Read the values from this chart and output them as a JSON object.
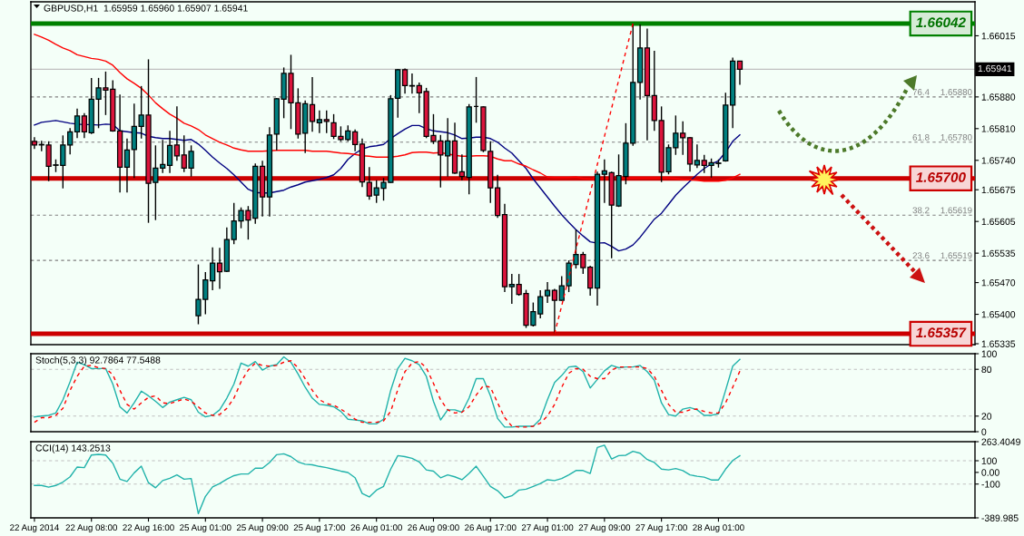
{
  "chart_data": [
    {
      "type": "candlestick",
      "title": "GBPUSD,H1  1.65959 1.65960 1.65907 1.65941",
      "categories": [
        null,
        null,
        null,
        null,
        null,
        null,
        null,
        null,
        null,
        null,
        null,
        null,
        null,
        null,
        null,
        null,
        null,
        null,
        null,
        null,
        null,
        null,
        null,
        null,
        null,
        null,
        null,
        null,
        null,
        null,
        null,
        null,
        null,
        null,
        null,
        null,
        null,
        null,
        null,
        null,
        null,
        null,
        null,
        null,
        null,
        null,
        null,
        null,
        null,
        null,
        null,
        null,
        null,
        null,
        null,
        null,
        null,
        null,
        null,
        null,
        null,
        null,
        null,
        null,
        null,
        null,
        null,
        null,
        null,
        null,
        null,
        null,
        null,
        null,
        null,
        null,
        null,
        null,
        null,
        null,
        null,
        null,
        null,
        null,
        null,
        null,
        null,
        null,
        null,
        null,
        null,
        null,
        null,
        null,
        null,
        null,
        null,
        null,
        null,
        null
      ],
      "ohlc": [
        [
          1.65782,
          1.65791,
          1.65765,
          1.65774
        ],
        [
          1.65774,
          1.65783,
          1.6576,
          1.65775
        ],
        [
          1.65774,
          1.65782,
          1.65694,
          1.65727
        ],
        [
          1.65729,
          1.65742,
          1.65714,
          1.6573
        ],
        [
          1.65729,
          1.65795,
          1.65678,
          1.65774
        ],
        [
          1.65774,
          1.65811,
          1.65753,
          1.65803
        ],
        [
          1.65803,
          1.65854,
          1.65789,
          1.65838
        ],
        [
          1.65838,
          1.65844,
          1.65789,
          1.65803
        ],
        [
          1.65801,
          1.65922,
          1.65798,
          1.65875
        ],
        [
          1.65875,
          1.65922,
          1.65811,
          1.659
        ],
        [
          1.659,
          1.65936,
          1.6584,
          1.65895
        ],
        [
          1.65897,
          1.65917,
          1.65803,
          1.65805
        ],
        [
          1.65805,
          1.65885,
          1.65669,
          1.65725
        ],
        [
          1.65725,
          1.65788,
          1.65669,
          1.65763
        ],
        [
          1.65764,
          1.65865,
          1.65701,
          1.65815
        ],
        [
          1.65815,
          1.65904,
          1.65788,
          1.6584
        ],
        [
          1.6584,
          1.65963,
          1.65602,
          1.65689
        ],
        [
          1.65691,
          1.65773,
          1.65608,
          1.65723
        ],
        [
          1.65723,
          1.65785,
          1.65712,
          1.65731
        ],
        [
          1.65729,
          1.65805,
          1.65712,
          1.65773
        ],
        [
          1.65774,
          1.65859,
          1.65739,
          1.6575
        ],
        [
          1.65752,
          1.65795,
          1.65714,
          1.65723
        ],
        [
          1.65723,
          1.65773,
          1.65704,
          1.6576
        ],
        [
          1.65397,
          1.6551,
          1.65378,
          1.65433
        ],
        [
          1.65433,
          1.65493,
          1.654,
          1.65476
        ],
        [
          1.65474,
          1.65548,
          1.65453,
          1.65513
        ],
        [
          1.65513,
          1.65547,
          1.65456,
          1.65494
        ],
        [
          1.65495,
          1.65592,
          1.65493,
          1.65565
        ],
        [
          1.65565,
          1.65646,
          1.65555,
          1.65606
        ],
        [
          1.65606,
          1.65636,
          1.6559,
          1.65629
        ],
        [
          1.65629,
          1.65639,
          1.65565,
          1.65608
        ],
        [
          1.65612,
          1.65733,
          1.656,
          1.65727
        ],
        [
          1.65727,
          1.65739,
          1.65616,
          1.65659
        ],
        [
          1.65659,
          1.65813,
          1.65616,
          1.65796
        ],
        [
          1.65798,
          1.65877,
          1.65762,
          1.65876
        ],
        [
          1.65875,
          1.65945,
          1.65833,
          1.65932
        ],
        [
          1.65932,
          1.65973,
          1.65809,
          1.65867
        ],
        [
          1.65867,
          1.65899,
          1.65788,
          1.65798
        ],
        [
          1.658,
          1.65872,
          1.65756,
          1.65865
        ],
        [
          1.65863,
          1.65924,
          1.65803,
          1.65826
        ],
        [
          1.65823,
          1.6585,
          1.658,
          1.6583
        ],
        [
          1.6583,
          1.6585,
          1.658,
          1.65826
        ],
        [
          1.65823,
          1.65842,
          1.65787,
          1.65793
        ],
        [
          1.65793,
          1.65815,
          1.65782,
          1.65786
        ],
        [
          1.65786,
          1.65817,
          1.65782,
          1.65805
        ],
        [
          1.65803,
          1.65808,
          1.6576,
          1.65775
        ],
        [
          1.65776,
          1.65788,
          1.65681,
          1.65692
        ],
        [
          1.65691,
          1.65725,
          1.65653,
          1.65661
        ],
        [
          1.65663,
          1.65696,
          1.65646,
          1.65679
        ],
        [
          1.65678,
          1.65701,
          1.65651,
          1.65691
        ],
        [
          1.65691,
          1.65884,
          1.6569,
          1.65876
        ],
        [
          1.65877,
          1.65942,
          1.65834,
          1.6594
        ],
        [
          1.6594,
          1.65943,
          1.65887,
          1.65905
        ],
        [
          1.65905,
          1.65932,
          1.65887,
          1.65904
        ],
        [
          1.65905,
          1.65912,
          1.65844,
          1.65889
        ],
        [
          1.65892,
          1.659,
          1.65789,
          1.65793
        ],
        [
          1.65795,
          1.65842,
          1.65776,
          1.65782
        ],
        [
          1.65783,
          1.65796,
          1.6568,
          1.65752
        ],
        [
          1.6575,
          1.65833,
          1.65704,
          1.65783
        ],
        [
          1.65783,
          1.65823,
          1.6571,
          1.65712
        ],
        [
          1.65715,
          1.65753,
          1.65696,
          1.65704
        ],
        [
          1.65702,
          1.65864,
          1.65665,
          1.65858
        ],
        [
          1.65859,
          1.65924,
          1.65823,
          1.65859
        ],
        [
          1.65858,
          1.65859,
          1.65758,
          1.65762
        ],
        [
          1.6576,
          1.65782,
          1.65646,
          1.65679
        ],
        [
          1.65679,
          1.65708,
          1.65613,
          1.65618
        ],
        [
          1.6562,
          1.65644,
          1.65449,
          1.65461
        ],
        [
          1.65461,
          1.65489,
          1.65423,
          1.65466
        ],
        [
          1.65466,
          1.65489,
          1.65441,
          1.65444
        ],
        [
          1.65446,
          1.65454,
          1.6537,
          1.65376
        ],
        [
          1.65376,
          1.65426,
          1.65373,
          1.65406
        ],
        [
          1.65401,
          1.65453,
          1.65391,
          1.65439
        ],
        [
          1.65441,
          1.65471,
          1.65425,
          1.65453
        ],
        [
          1.65453,
          1.65456,
          1.65357,
          1.65431
        ],
        [
          1.65431,
          1.65484,
          1.6543,
          1.65463
        ],
        [
          1.65463,
          1.65519,
          1.65449,
          1.65513
        ],
        [
          1.6551,
          1.65587,
          1.65501,
          1.65532
        ],
        [
          1.65532,
          1.65538,
          1.65489,
          1.65503
        ],
        [
          1.65504,
          1.65507,
          1.65441,
          1.65458
        ],
        [
          1.65458,
          1.65715,
          1.65419,
          1.65709
        ],
        [
          1.65709,
          1.65742,
          1.65646,
          1.65717
        ],
        [
          1.65713,
          1.65715,
          1.65524,
          1.65641
        ],
        [
          1.65639,
          1.65753,
          1.65637,
          1.65706
        ],
        [
          1.65704,
          1.65822,
          1.65687,
          1.65778
        ],
        [
          1.65778,
          1.66042,
          1.65772,
          1.65912
        ],
        [
          1.65912,
          1.6604,
          1.65874,
          1.65988
        ],
        [
          1.65988,
          1.66031,
          1.65784,
          1.65883
        ],
        [
          1.65883,
          1.65982,
          1.65805,
          1.65828
        ],
        [
          1.65828,
          1.65859,
          1.65692,
          1.65714
        ],
        [
          1.65715,
          1.65775,
          1.65709,
          1.65768
        ],
        [
          1.65768,
          1.65839,
          1.65752,
          1.658
        ],
        [
          1.658,
          1.65826,
          1.65752,
          1.6579
        ],
        [
          1.6579,
          1.65791,
          1.65715,
          1.65732
        ],
        [
          1.6573,
          1.65775,
          1.65723,
          1.6574
        ],
        [
          1.6574,
          1.65752,
          1.65712,
          1.65729
        ],
        [
          1.65729,
          1.65744,
          1.65702,
          1.65735
        ],
        [
          1.65733,
          1.65742,
          1.65724,
          1.65734
        ],
        [
          1.65739,
          1.65889,
          1.65737,
          1.65862
        ],
        [
          1.65862,
          1.65967,
          1.65811,
          1.65959
        ],
        [
          1.65959,
          1.6596,
          1.65907,
          1.65941
        ]
      ],
      "colors": [
        "#dc143c",
        "#008080",
        "#dc143c",
        "#008080",
        "#008080",
        "#008080",
        "#008080",
        "#dc143c",
        "#008080",
        "#008080",
        "#dc143c",
        "#dc143c",
        "#dc143c",
        "#008080",
        "#008080",
        "#008080",
        "#dc143c",
        "#008080",
        "#008080",
        "#008080",
        "#dc143c",
        "#dc143c",
        "#008080",
        "#008080",
        "#008080",
        "#008080",
        "#dc143c",
        "#008080",
        "#008080",
        "#008080",
        "#dc143c",
        "#008080",
        "#dc143c",
        "#008080",
        "#008080",
        "#008080",
        "#dc143c",
        "#dc143c",
        "#008080",
        "#dc143c",
        "#008080",
        "#dc143c",
        "#dc143c",
        "#dc143c",
        "#008080",
        "#dc143c",
        "#dc143c",
        "#dc143c",
        "#008080",
        "#008080",
        "#008080",
        "#008080",
        "#dc143c",
        "#dc143c",
        "#dc143c",
        "#dc143c",
        "#dc143c",
        "#dc143c",
        "#008080",
        "#dc143c",
        "#dc143c",
        "#008080",
        "#000000",
        "#dc143c",
        "#dc143c",
        "#dc143c",
        "#dc143c",
        "#008080",
        "#dc143c",
        "#dc143c",
        "#008080",
        "#008080",
        "#008080",
        "#dc143c",
        "#008080",
        "#008080",
        "#008080",
        "#dc143c",
        "#dc143c",
        "#008080",
        "#008080",
        "#dc143c",
        "#008080",
        "#008080",
        "#008080",
        "#008080",
        "#dc143c",
        "#dc143c",
        "#dc143c",
        "#008080",
        "#008080",
        "#dc143c",
        "#dc143c",
        "#008080",
        "#dc143c",
        "#008080",
        "#008080",
        "#008080",
        "#008080",
        "#dc143c"
      ],
      "series": [
        {
          "type": "line",
          "color": "#000080",
          "values": [
            1.65818,
            1.65824,
            1.65826,
            1.65828,
            1.65825,
            1.65822,
            1.6582,
            1.65819,
            1.65819,
            1.65818,
            1.6582,
            1.65819,
            1.65805,
            1.65803,
            1.65801,
            1.658,
            1.65793,
            1.6579,
            1.65788,
            1.65788,
            1.65786,
            1.65784,
            1.65786,
            1.65776,
            1.65762,
            1.65747,
            1.65734,
            1.65722,
            1.65708,
            1.65692,
            1.65676,
            1.65669,
            1.65668,
            1.65668,
            1.65671,
            1.65674,
            1.65681,
            1.65686,
            1.65692,
            1.65695,
            1.65698,
            1.65702,
            1.65708,
            1.65722,
            1.65742,
            1.65755,
            1.65765,
            1.6577,
            1.65772,
            1.65775,
            1.65788,
            1.65799,
            1.65809,
            1.65817,
            1.65817,
            1.6581,
            1.65805,
            1.65803,
            1.65801,
            1.65796,
            1.65788,
            1.65789,
            1.65791,
            1.65791,
            1.65788,
            1.6578,
            1.65767,
            1.65756,
            1.65739,
            1.65722,
            1.65699,
            1.65679,
            1.65659,
            1.65639,
            1.6562,
            1.65603,
            1.65587,
            1.65573,
            1.6556,
            1.65557,
            1.65558,
            1.6555,
            1.6554,
            1.65544,
            1.65553,
            1.6557,
            1.6559,
            1.6561,
            1.65623,
            1.65643,
            1.65663,
            1.65679,
            1.65694,
            1.65709,
            1.65722,
            1.65732,
            1.65739,
            1.65758,
            1.65782,
            1.65796
          ]
        },
        {
          "type": "line",
          "color": "#ff0000",
          "values": [
            1.66018,
            1.66012,
            1.66005,
            1.65996,
            1.65988,
            1.65982,
            1.65973,
            1.65969,
            1.65965,
            1.65963,
            1.65959,
            1.6595,
            1.65934,
            1.6592,
            1.6591,
            1.65899,
            1.65884,
            1.65867,
            1.65854,
            1.65842,
            1.65833,
            1.65822,
            1.65816,
            1.65808,
            1.65796,
            1.65788,
            1.6578,
            1.65774,
            1.65767,
            1.65763,
            1.6576,
            1.6576,
            1.6576,
            1.65761,
            1.65762,
            1.65762,
            1.65762,
            1.65762,
            1.65762,
            1.6576,
            1.6576,
            1.6576,
            1.65758,
            1.65756,
            1.65755,
            1.65753,
            1.6575,
            1.65749,
            1.65747,
            1.65747,
            1.65747,
            1.65749,
            1.65752,
            1.65757,
            1.65758,
            1.65758,
            1.65756,
            1.65757,
            1.65754,
            1.65751,
            1.65749,
            1.65749,
            1.6575,
            1.6575,
            1.65749,
            1.65743,
            1.65739,
            1.65739,
            1.65732,
            1.65727,
            1.65719,
            1.65712,
            1.65703,
            1.65702,
            1.65702,
            1.65702,
            1.65703,
            1.657,
            1.65699,
            1.65699,
            1.657,
            1.65701,
            1.65701,
            1.65701,
            1.65701,
            1.65701,
            1.65701,
            1.65701,
            1.65701,
            1.65701,
            1.657,
            1.65698,
            1.65697,
            1.65696,
            1.65694,
            1.65694,
            1.65694,
            1.65696,
            1.65701,
            1.65709
          ]
        },
        {
          "type": "line",
          "color": "#ff0000",
          "line_style": "dashed",
          "values": [
            null,
            null,
            null,
            null,
            null,
            null,
            null,
            null,
            null,
            null,
            null,
            null,
            null,
            null,
            null,
            null,
            null,
            null,
            null,
            null,
            null,
            null,
            null,
            null,
            null,
            null,
            null,
            null,
            null,
            null,
            null,
            null,
            null,
            null,
            null,
            null,
            null,
            null,
            null,
            null,
            null,
            null,
            null,
            null,
            null,
            null,
            null,
            null,
            null,
            null,
            null,
            null,
            null,
            null,
            null,
            null,
            null,
            null,
            null,
            null,
            null,
            null,
            null,
            null,
            null,
            null,
            null,
            null,
            null,
            null,
            null,
            null,
            null,
            1.65357,
            1.65419,
            1.65482,
            1.65544,
            1.65606,
            1.65668,
            1.65731,
            1.65793,
            1.65855,
            1.65917,
            1.6598,
            1.66042,
            null,
            null,
            null,
            null,
            null,
            null,
            null,
            null,
            null,
            null,
            null,
            null,
            null,
            null,
            null
          ]
        }
      ],
      "ylim": [
        1.65333,
        1.6609
      ],
      "yticks": [
        1.66015,
        {
          "value": 1.6588,
          "label": "1.65880"
        },
        {
          "value": 1.6581,
          "label": "1.65810"
        },
        {
          "value": 1.6574,
          "label": "1.65740"
        },
        1.65675,
        1.65605,
        1.65535,
        {
          "value": 1.6547,
          "label": "1.65470"
        },
        {
          "value": 1.654,
          "label": "1.65400"
        },
        1.65335
      ],
      "ref_lines": [
        {
          "axis": "y",
          "value": 1.65941,
          "label": "1.65941",
          "color": "#c0c0c0"
        },
        {
          "axis": "y",
          "value": 1.6588,
          "label": "1.65880",
          "color": "#808080",
          "line_style": "dashed"
        },
        {
          "axis": "y",
          "value": 1.6578,
          "label": "1.65780",
          "color": "#808080",
          "line_style": "dashed"
        },
        {
          "axis": "y",
          "value": 1.65619,
          "label": "1.65619",
          "color": "#808080",
          "line_style": "dashed"
        },
        {
          "axis": "y",
          "value": 1.65519,
          "label": "1.65519",
          "color": "#808080",
          "line_style": "dashed"
        },
        {
          "axis": "y",
          "value": 1.66042,
          "label": "1.66042",
          "color": "#008000",
          "line_style": "solid"
        },
        {
          "axis": "y",
          "value": 1.657,
          "label": "1.65700",
          "color": "#cc0000",
          "line_style": "solid"
        },
        {
          "axis": "y",
          "value": 1.65357,
          "label": "1.65357",
          "color": "#cc0000",
          "line_style": "solid"
        }
      ],
      "annotations": [
        {
          "text": "76.4",
          "y": 1.6588
        },
        {
          "text": "61.8",
          "y": 1.6578
        },
        {
          "text": "38.2",
          "y": 1.65619
        },
        {
          "text": "23.6",
          "y": 1.65519
        }
      ],
      "tick_labels": "y"
    },
    {
      "type": "line",
      "title": "Stoch(5,3,3) 92.7864 77.5488",
      "categories": [
        null,
        null,
        null,
        null,
        null,
        null,
        null,
        null,
        null,
        null,
        null,
        null,
        null,
        null,
        null,
        null,
        null,
        null,
        null,
        null,
        null,
        null,
        null,
        null,
        null,
        null,
        null,
        null,
        null,
        null,
        null,
        null,
        null,
        null,
        null,
        null,
        null,
        null,
        null,
        null,
        null,
        null,
        null,
        null,
        null,
        null,
        null,
        null,
        null,
        null,
        null,
        null,
        null,
        null,
        null,
        null,
        null,
        null,
        null,
        null,
        null,
        null,
        null,
        null,
        null,
        null,
        null,
        null,
        null,
        null,
        null,
        null,
        null,
        null,
        null,
        null,
        null,
        null,
        null,
        null,
        null,
        null,
        null,
        null,
        null,
        null,
        null,
        null,
        null,
        null,
        null,
        null,
        null,
        null,
        null,
        null,
        null,
        null,
        null,
        null
      ],
      "series": [
        {
          "color": "#20b2aa",
          "values": [
            19,
            20,
            21,
            24,
            41,
            64,
            89,
            86,
            81,
            81,
            81,
            61,
            32,
            24,
            37,
            52,
            46,
            39,
            31,
            38,
            41,
            44,
            41,
            25,
            19,
            21,
            28,
            43,
            61,
            88,
            84,
            90,
            79,
            84,
            86,
            96,
            89,
            74,
            57,
            43,
            35,
            34,
            32,
            26,
            16,
            15,
            14,
            10,
            10,
            16,
            53,
            81,
            94,
            91,
            86,
            71,
            39,
            15,
            28,
            28,
            25,
            43,
            68,
            68,
            46,
            17,
            6,
            6,
            7,
            7,
            7,
            16,
            41,
            63,
            72,
            83,
            84,
            77,
            56,
            67,
            78,
            85,
            82,
            83,
            83,
            85,
            77,
            66,
            37,
            22,
            20,
            29,
            31,
            28,
            21,
            21,
            23,
            53,
            84,
            92.7864
          ]
        },
        {
          "color": "#ff0000",
          "line_style": "dashed",
          "values": [
            12,
            18,
            18,
            21,
            30,
            53,
            71,
            84,
            85,
            82,
            81,
            73,
            53,
            35,
            29,
            37,
            44,
            46,
            37,
            36,
            39,
            42,
            39,
            32,
            24,
            21,
            22,
            30,
            43,
            64,
            79,
            88,
            85,
            84,
            85,
            89,
            91,
            82,
            68,
            53,
            41,
            36,
            34,
            29,
            23,
            16,
            12,
            12,
            12,
            14,
            26,
            54,
            77,
            88,
            90,
            82,
            62,
            41,
            28,
            24,
            25,
            32,
            47,
            59,
            57,
            37,
            18,
            7,
            6,
            6,
            7,
            11,
            20,
            35,
            57,
            75,
            81,
            80,
            71,
            68,
            68,
            79,
            83,
            83,
            83,
            83,
            81,
            71,
            53,
            35,
            25,
            25,
            28,
            29,
            26,
            24,
            24,
            37,
            57,
            77.5488
          ]
        }
      ],
      "ylim": [
        0,
        100
      ],
      "yticks": [
        100,
        80,
        20,
        0
      ],
      "ref_lines": [
        {
          "axis": "y",
          "value": 80,
          "color": "#c0c0c0",
          "line_style": "dashed"
        },
        {
          "axis": "y",
          "value": 20,
          "color": "#c0c0c0",
          "line_style": "dashed"
        }
      ],
      "tick_labels": "y"
    },
    {
      "type": "line",
      "title": "CCI(14) 143.2513",
      "categories": [
        "22 Aug 2014",
        null,
        null,
        null,
        null,
        null,
        null,
        null,
        "22 Aug 08:00",
        null,
        null,
        null,
        null,
        null,
        null,
        null,
        "22 Aug 16:00",
        null,
        null,
        null,
        null,
        null,
        null,
        null,
        "25 Aug 01:00",
        null,
        null,
        null,
        null,
        null,
        null,
        null,
        "25 Aug 09:00",
        null,
        null,
        null,
        null,
        null,
        null,
        null,
        "25 Aug 17:00",
        null,
        null,
        null,
        null,
        null,
        null,
        null,
        "26 Aug 01:00",
        null,
        null,
        null,
        null,
        null,
        null,
        null,
        "26 Aug 09:00",
        null,
        null,
        null,
        null,
        null,
        null,
        null,
        "26 Aug 17:00",
        null,
        null,
        null,
        null,
        null,
        null,
        null,
        "27 Aug 01:00",
        null,
        null,
        null,
        null,
        null,
        null,
        null,
        "27 Aug 09:00",
        null,
        null,
        null,
        null,
        null,
        null,
        null,
        "27 Aug 17:00",
        null,
        null,
        null,
        null,
        null,
        null,
        null,
        "28 Aug 01:00",
        null,
        null,
        null
      ],
      "series": [
        {
          "color": "#20b2aa",
          "values": [
            -112,
            -112,
            -127,
            -112,
            -83,
            -38,
            46,
            41,
            149,
            154,
            149,
            78,
            -58,
            -78,
            -4,
            53,
            -88,
            -132,
            -70,
            -51,
            -21,
            -58,
            -53,
            -354,
            -206,
            -125,
            -95,
            -58,
            -28,
            -14,
            -14,
            36,
            36,
            85,
            152,
            159,
            135,
            90,
            70,
            65,
            51,
            41,
            26,
            11,
            -1,
            -46,
            -181,
            -211,
            -152,
            -120,
            28,
            144,
            135,
            120,
            90,
            21,
            11,
            -46,
            -21,
            -38,
            -63,
            -9,
            53,
            -33,
            -120,
            -157,
            -219,
            -201,
            -152,
            -144,
            -120,
            -95,
            -63,
            -70,
            -53,
            -21,
            16,
            16,
            -9,
            214,
            233,
            115,
            144,
            147,
            181,
            164,
            110,
            85,
            28,
            21,
            33,
            16,
            -21,
            -33,
            -41,
            -65,
            -65,
            28,
            102,
            143.2513
          ]
        }
      ],
      "ylim": [
        -389.985,
        263.4049
      ],
      "yticks": [
        263.4049,
        100,
        {
          "value": 0,
          "label": "0.00"
        },
        -100,
        -389.985
      ],
      "ref_lines": [
        {
          "axis": "y",
          "value": 100,
          "color": "#c0c0c0",
          "line_style": "dashed"
        },
        {
          "axis": "y",
          "value": -100,
          "color": "#c0c0c0",
          "line_style": "dashed"
        }
      ]
    }
  ]
}
